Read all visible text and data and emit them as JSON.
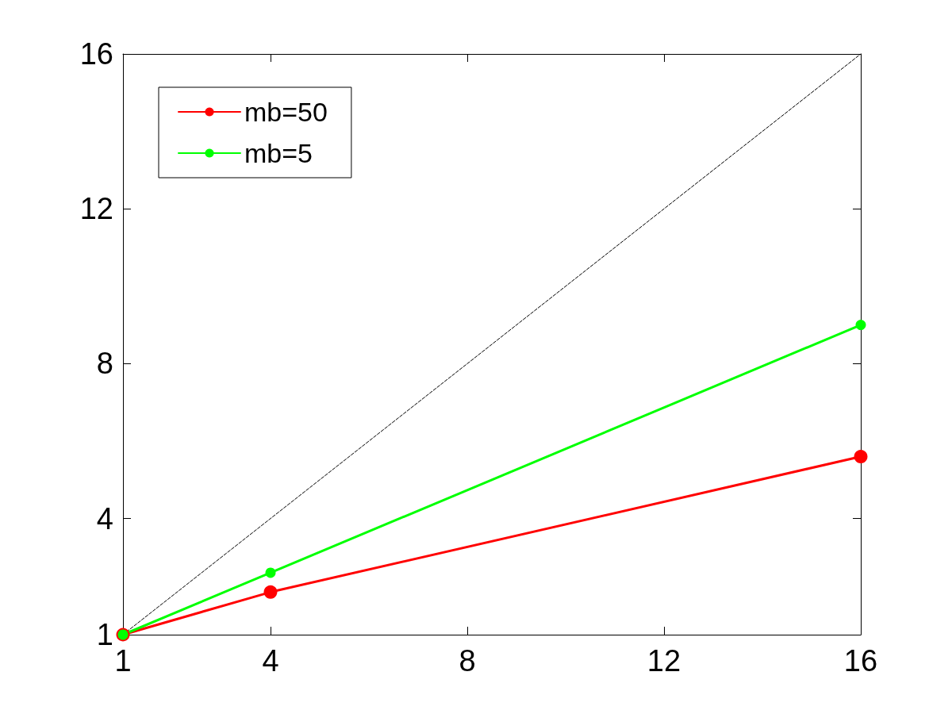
{
  "chart_data": {
    "type": "line",
    "x": [
      1,
      4,
      16
    ],
    "series": [
      {
        "name": "mb=50",
        "color": "#ff0000",
        "values": [
          1,
          2.1,
          5.6
        ],
        "marker": "circle"
      },
      {
        "name": "mb=5",
        "color": "#00ff00",
        "values": [
          1,
          2.6,
          9
        ],
        "marker": "circle"
      },
      {
        "color": "#000000",
        "x": [
          1,
          16
        ],
        "values": [
          1,
          16
        ],
        "marker": "none",
        "line_style": "dashed"
      }
    ],
    "xlim": [
      1,
      16
    ],
    "xticks": [
      1,
      4,
      8,
      12,
      16
    ],
    "ylim": [
      1,
      16
    ],
    "yticks": [
      1,
      4,
      8,
      12,
      16
    ],
    "grid": false,
    "legend": "top left"
  }
}
